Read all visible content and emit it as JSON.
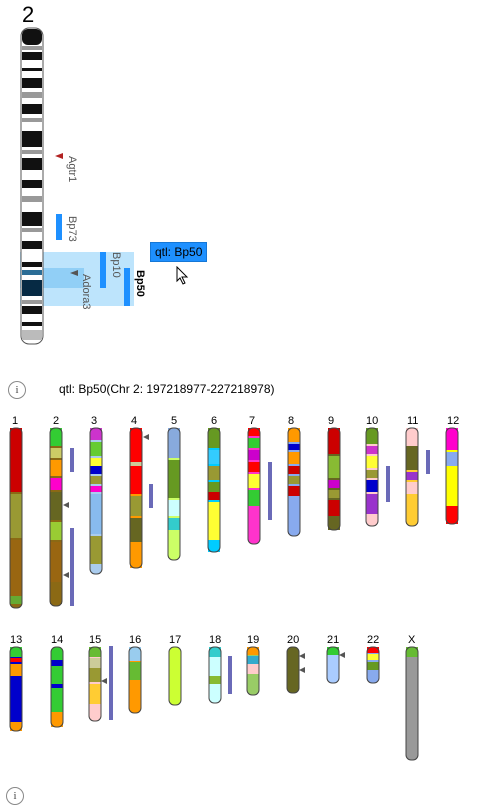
{
  "detail": {
    "chromosome_number": "2",
    "genes": [
      {
        "name": "Agtr1",
        "color": "#b22222"
      },
      {
        "name": "Adora3",
        "color": "#555555"
      }
    ],
    "qtls": [
      {
        "name": "Bp73",
        "color": "#1e90ff"
      },
      {
        "name": "Bp10",
        "color": "#1e90ff"
      },
      {
        "name": "Bp50",
        "color": "#1e90ff",
        "selected": true
      }
    ],
    "tooltip": "qtl: Bp50"
  },
  "info": {
    "icon": "i",
    "description": "qtl: Bp50(Chr 2: 197218977-227218978)"
  },
  "karyotype": {
    "labels": [
      "1",
      "2",
      "3",
      "4",
      "5",
      "6",
      "7",
      "8",
      "9",
      "10",
      "11",
      "12",
      "13",
      "14",
      "15",
      "16",
      "17",
      "18",
      "19",
      "20",
      "21",
      "22",
      "X"
    ]
  },
  "footer_icon": "i",
  "colors": {
    "qtl_bar": "#6a6ab8",
    "highlight": "#87cefa",
    "tooltip_bg": "#1e90ff"
  }
}
